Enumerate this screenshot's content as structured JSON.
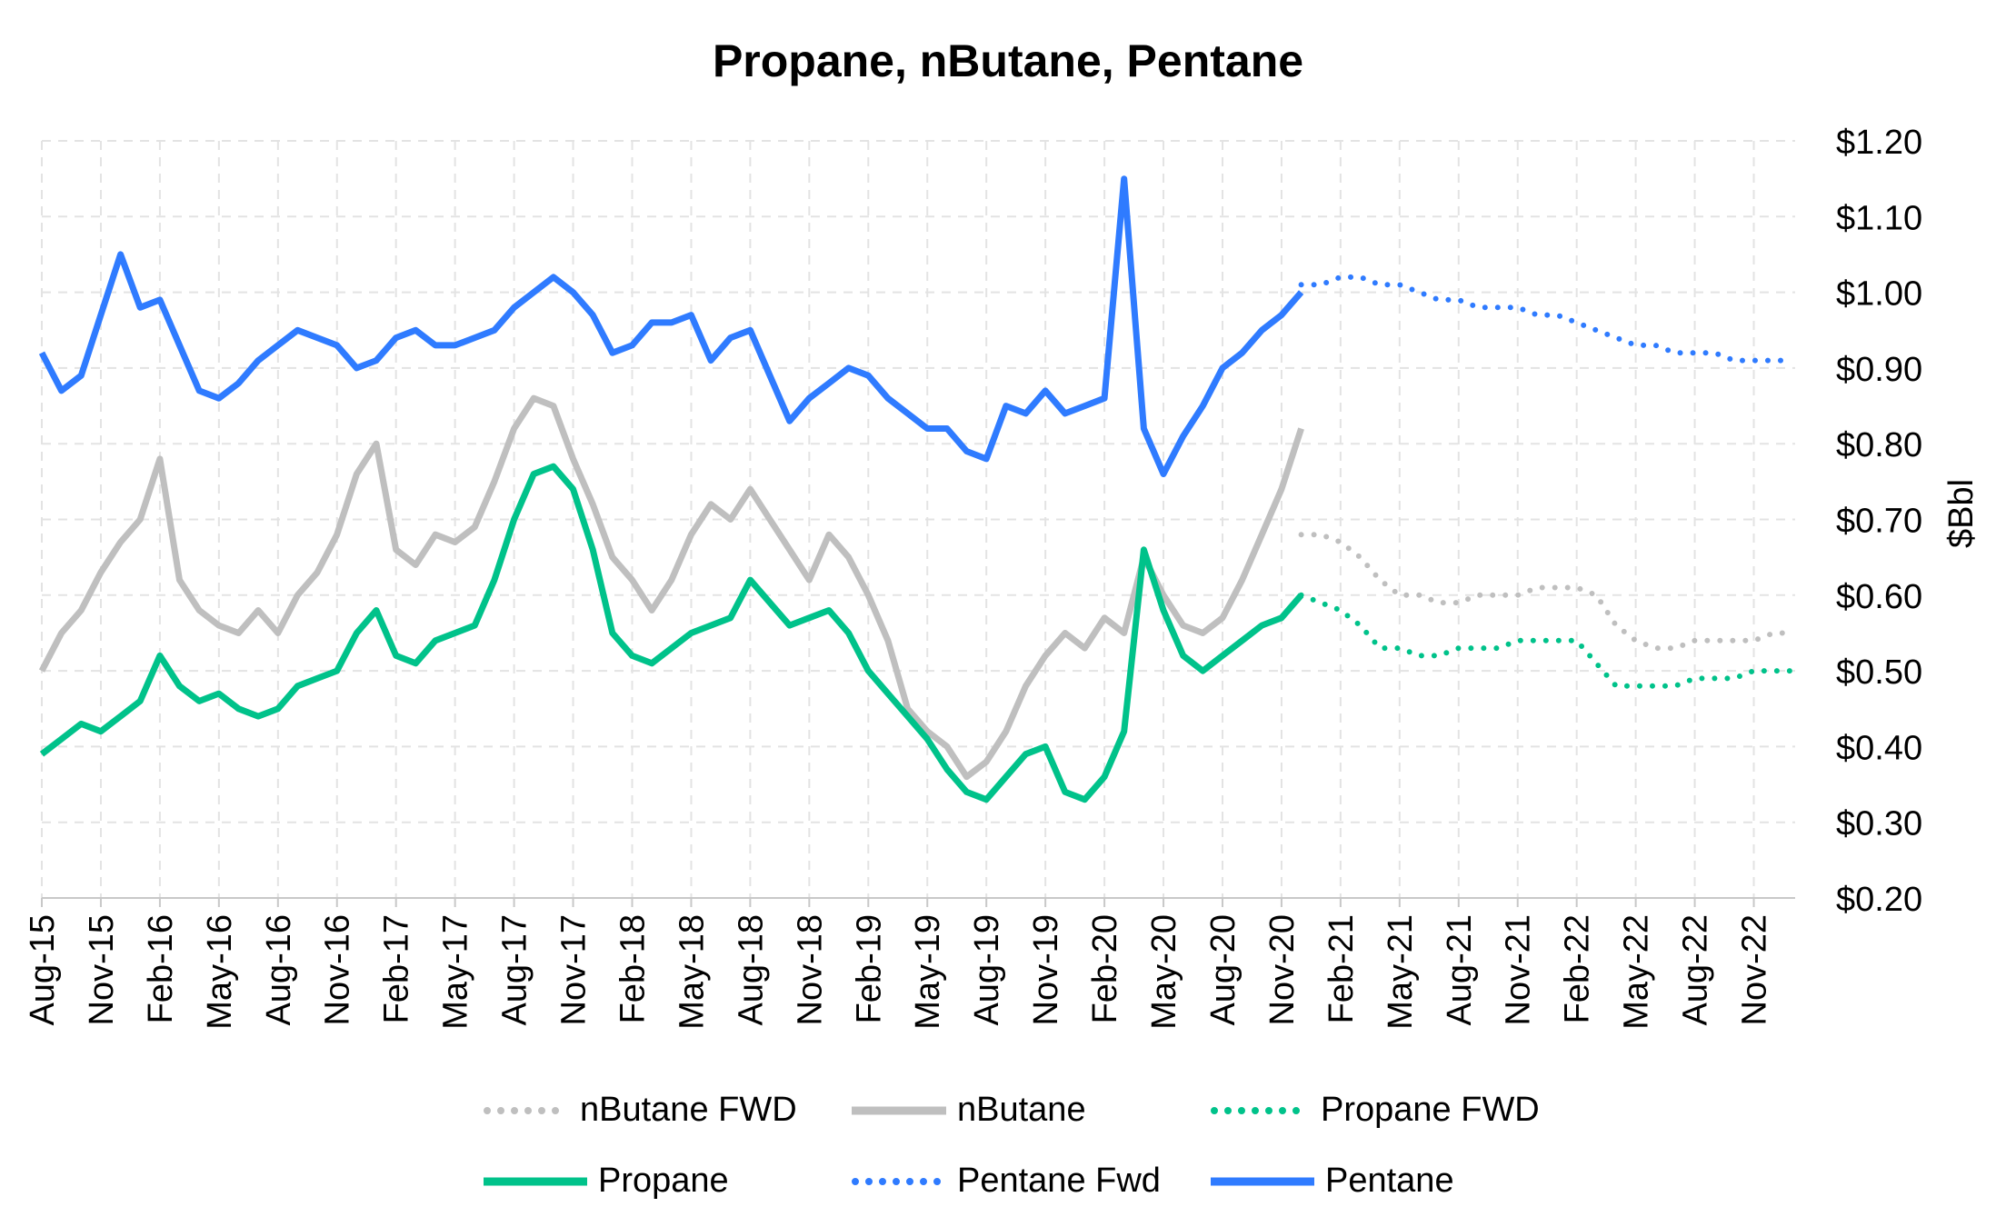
{
  "chart_data": {
    "type": "line",
    "title": "Propane, nButane, Pentane",
    "xlabel": "",
    "ylabel": "$Bbl",
    "ylim": [
      0.2,
      1.2
    ],
    "y_ticks": [
      "$0.20",
      "$0.30",
      "$0.40",
      "$0.50",
      "$0.60",
      "$0.70",
      "$0.80",
      "$0.90",
      "$1.00",
      "$1.10",
      "$1.20"
    ],
    "x_ticks": [
      "Aug-15",
      "Nov-15",
      "Feb-16",
      "May-16",
      "Aug-16",
      "Nov-16",
      "Feb-17",
      "May-17",
      "Aug-17",
      "Nov-17",
      "Feb-18",
      "May-18",
      "Aug-18",
      "Nov-18",
      "Feb-19",
      "May-19",
      "Aug-19",
      "Nov-19",
      "Feb-20",
      "May-20",
      "Aug-20",
      "Nov-20",
      "Feb-21",
      "May-21",
      "Aug-21",
      "Nov-21",
      "Feb-22",
      "May-22",
      "Aug-22",
      "Nov-22"
    ],
    "grid": true,
    "legend_position": "bottom",
    "series": [
      {
        "name": "Pentane",
        "style": "solid",
        "color": "#2f7bff",
        "x": [
          "Aug-15",
          "Sep-15",
          "Oct-15",
          "Nov-15",
          "Dec-15",
          "Jan-16",
          "Feb-16",
          "Mar-16",
          "Apr-16",
          "May-16",
          "Jun-16",
          "Jul-16",
          "Aug-16",
          "Sep-16",
          "Oct-16",
          "Nov-16",
          "Dec-16",
          "Jan-17",
          "Feb-17",
          "Mar-17",
          "Apr-17",
          "May-17",
          "Jun-17",
          "Jul-17",
          "Aug-17",
          "Sep-17",
          "Oct-17",
          "Nov-17",
          "Dec-17",
          "Jan-18",
          "Feb-18",
          "Mar-18",
          "Apr-18",
          "May-18",
          "Jun-18",
          "Jul-18",
          "Aug-18",
          "Sep-18",
          "Oct-18",
          "Nov-18",
          "Dec-18",
          "Jan-19",
          "Feb-19",
          "Mar-19",
          "Apr-19",
          "May-19",
          "Jun-19",
          "Jul-19",
          "Aug-19",
          "Sep-19",
          "Oct-19",
          "Nov-19",
          "Dec-19",
          "Jan-20",
          "Feb-20",
          "Mar-20",
          "Apr-20",
          "May-20",
          "Jun-20",
          "Jul-20",
          "Aug-20",
          "Sep-20",
          "Oct-20",
          "Nov-20",
          "Dec-20"
        ],
        "values": [
          0.92,
          0.87,
          0.89,
          0.97,
          1.05,
          0.98,
          0.99,
          0.93,
          0.87,
          0.86,
          0.88,
          0.91,
          0.93,
          0.95,
          0.94,
          0.93,
          0.9,
          0.91,
          0.94,
          0.95,
          0.93,
          0.93,
          0.94,
          0.95,
          0.98,
          1.0,
          1.02,
          1.0,
          0.97,
          0.92,
          0.93,
          0.96,
          0.96,
          0.97,
          0.91,
          0.94,
          0.95,
          0.89,
          0.83,
          0.86,
          0.88,
          0.9,
          0.89,
          0.86,
          0.84,
          0.82,
          0.82,
          0.79,
          0.78,
          0.85,
          0.84,
          0.87,
          0.84,
          0.85,
          0.86,
          1.15,
          0.82,
          0.76,
          0.81,
          0.85,
          0.9,
          0.92,
          0.95,
          0.97,
          1.0
        ]
      },
      {
        "name": "Pentane Fwd",
        "style": "dotted",
        "color": "#2f7bff",
        "x": [
          "Dec-20",
          "Jan-21",
          "Feb-21",
          "Mar-21",
          "Apr-21",
          "May-21",
          "Jun-21",
          "Jul-21",
          "Aug-21",
          "Sep-21",
          "Oct-21",
          "Nov-21",
          "Dec-21",
          "Jan-22",
          "Feb-22",
          "Mar-22",
          "Apr-22",
          "May-22",
          "Jun-22",
          "Jul-22",
          "Aug-22",
          "Sep-22",
          "Oct-22",
          "Nov-22",
          "Dec-22",
          "Jan-23"
        ],
        "values": [
          1.01,
          1.01,
          1.02,
          1.02,
          1.01,
          1.01,
          1.0,
          0.99,
          0.99,
          0.98,
          0.98,
          0.98,
          0.97,
          0.97,
          0.96,
          0.95,
          0.94,
          0.93,
          0.93,
          0.92,
          0.92,
          0.92,
          0.91,
          0.91,
          0.91,
          0.91
        ]
      },
      {
        "name": "nButane",
        "style": "solid",
        "color": "#bfbfbf",
        "x": [
          "Aug-15",
          "Sep-15",
          "Oct-15",
          "Nov-15",
          "Dec-15",
          "Jan-16",
          "Feb-16",
          "Mar-16",
          "Apr-16",
          "May-16",
          "Jun-16",
          "Jul-16",
          "Aug-16",
          "Sep-16",
          "Oct-16",
          "Nov-16",
          "Dec-16",
          "Jan-17",
          "Feb-17",
          "Mar-17",
          "Apr-17",
          "May-17",
          "Jun-17",
          "Jul-17",
          "Aug-17",
          "Sep-17",
          "Oct-17",
          "Nov-17",
          "Dec-17",
          "Jan-18",
          "Feb-18",
          "Mar-18",
          "Apr-18",
          "May-18",
          "Jun-18",
          "Jul-18",
          "Aug-18",
          "Sep-18",
          "Oct-18",
          "Nov-18",
          "Dec-18",
          "Jan-19",
          "Feb-19",
          "Mar-19",
          "Apr-19",
          "May-19",
          "Jun-19",
          "Jul-19",
          "Aug-19",
          "Sep-19",
          "Oct-19",
          "Nov-19",
          "Dec-19",
          "Jan-20",
          "Feb-20",
          "Mar-20",
          "Apr-20",
          "May-20",
          "Jun-20",
          "Jul-20",
          "Aug-20",
          "Sep-20",
          "Oct-20",
          "Nov-20",
          "Dec-20"
        ],
        "values": [
          0.5,
          0.55,
          0.58,
          0.63,
          0.67,
          0.7,
          0.78,
          0.62,
          0.58,
          0.56,
          0.55,
          0.58,
          0.55,
          0.6,
          0.63,
          0.68,
          0.76,
          0.8,
          0.66,
          0.64,
          0.68,
          0.67,
          0.69,
          0.75,
          0.82,
          0.86,
          0.85,
          0.78,
          0.72,
          0.65,
          0.62,
          0.58,
          0.62,
          0.68,
          0.72,
          0.7,
          0.74,
          0.7,
          0.66,
          0.62,
          0.68,
          0.65,
          0.6,
          0.54,
          0.45,
          0.42,
          0.4,
          0.36,
          0.38,
          0.42,
          0.48,
          0.52,
          0.55,
          0.53,
          0.57,
          0.55,
          0.65,
          0.6,
          0.56,
          0.55,
          0.57,
          0.62,
          0.68,
          0.74,
          0.82
        ]
      },
      {
        "name": "nButane FWD",
        "style": "dotted",
        "color": "#bfbfbf",
        "x": [
          "Dec-20",
          "Jan-21",
          "Feb-21",
          "Mar-21",
          "Apr-21",
          "May-21",
          "Jun-21",
          "Jul-21",
          "Aug-21",
          "Sep-21",
          "Oct-21",
          "Nov-21",
          "Dec-21",
          "Jan-22",
          "Feb-22",
          "Mar-22",
          "Apr-22",
          "May-22",
          "Jun-22",
          "Jul-22",
          "Aug-22",
          "Sep-22",
          "Oct-22",
          "Nov-22",
          "Dec-22",
          "Jan-23"
        ],
        "values": [
          0.68,
          0.68,
          0.67,
          0.65,
          0.62,
          0.6,
          0.6,
          0.59,
          0.59,
          0.6,
          0.6,
          0.6,
          0.61,
          0.61,
          0.61,
          0.6,
          0.56,
          0.54,
          0.53,
          0.53,
          0.54,
          0.54,
          0.54,
          0.54,
          0.55,
          0.55
        ]
      },
      {
        "name": "Propane",
        "style": "solid",
        "color": "#00c28a",
        "x": [
          "Aug-15",
          "Sep-15",
          "Oct-15",
          "Nov-15",
          "Dec-15",
          "Jan-16",
          "Feb-16",
          "Mar-16",
          "Apr-16",
          "May-16",
          "Jun-16",
          "Jul-16",
          "Aug-16",
          "Sep-16",
          "Oct-16",
          "Nov-16",
          "Dec-16",
          "Jan-17",
          "Feb-17",
          "Mar-17",
          "Apr-17",
          "May-17",
          "Jun-17",
          "Jul-17",
          "Aug-17",
          "Sep-17",
          "Oct-17",
          "Nov-17",
          "Dec-17",
          "Jan-18",
          "Feb-18",
          "Mar-18",
          "Apr-18",
          "May-18",
          "Jun-18",
          "Jul-18",
          "Aug-18",
          "Sep-18",
          "Oct-18",
          "Nov-18",
          "Dec-18",
          "Jan-19",
          "Feb-19",
          "Mar-19",
          "Apr-19",
          "May-19",
          "Jun-19",
          "Jul-19",
          "Aug-19",
          "Sep-19",
          "Oct-19",
          "Nov-19",
          "Dec-19",
          "Jan-20",
          "Feb-20",
          "Mar-20",
          "Apr-20",
          "May-20",
          "Jun-20",
          "Jul-20",
          "Aug-20",
          "Sep-20",
          "Oct-20",
          "Nov-20",
          "Dec-20"
        ],
        "values": [
          0.39,
          0.41,
          0.43,
          0.42,
          0.44,
          0.46,
          0.52,
          0.48,
          0.46,
          0.47,
          0.45,
          0.44,
          0.45,
          0.48,
          0.49,
          0.5,
          0.55,
          0.58,
          0.52,
          0.51,
          0.54,
          0.55,
          0.56,
          0.62,
          0.7,
          0.76,
          0.77,
          0.74,
          0.66,
          0.55,
          0.52,
          0.51,
          0.53,
          0.55,
          0.56,
          0.57,
          0.62,
          0.59,
          0.56,
          0.57,
          0.58,
          0.55,
          0.5,
          0.47,
          0.44,
          0.41,
          0.37,
          0.34,
          0.33,
          0.36,
          0.39,
          0.4,
          0.34,
          0.33,
          0.36,
          0.42,
          0.66,
          0.58,
          0.52,
          0.5,
          0.52,
          0.54,
          0.56,
          0.57,
          0.6
        ]
      },
      {
        "name": "Propane FWD",
        "style": "dotted",
        "color": "#00c28a",
        "x": [
          "Dec-20",
          "Jan-21",
          "Feb-21",
          "Mar-21",
          "Apr-21",
          "May-21",
          "Jun-21",
          "Jul-21",
          "Aug-21",
          "Sep-21",
          "Oct-21",
          "Nov-21",
          "Dec-21",
          "Jan-22",
          "Feb-22",
          "Mar-22",
          "Apr-22",
          "May-22",
          "Jun-22",
          "Jul-22",
          "Aug-22",
          "Sep-22",
          "Oct-22",
          "Nov-22",
          "Dec-22",
          "Jan-23"
        ],
        "values": [
          0.6,
          0.59,
          0.58,
          0.56,
          0.53,
          0.53,
          0.52,
          0.52,
          0.53,
          0.53,
          0.53,
          0.54,
          0.54,
          0.54,
          0.54,
          0.51,
          0.48,
          0.48,
          0.48,
          0.48,
          0.49,
          0.49,
          0.49,
          0.5,
          0.5,
          0.5
        ]
      }
    ]
  },
  "legend": {
    "row1": [
      {
        "label": "nButane FWD",
        "series": "nButane FWD"
      },
      {
        "label": "nButane",
        "series": "nButane"
      },
      {
        "label": "Propane FWD",
        "series": "Propane FWD"
      }
    ],
    "row2": [
      {
        "label": "Propane",
        "series": "Propane"
      },
      {
        "label": "Pentane Fwd",
        "series": "Pentane Fwd"
      },
      {
        "label": "Pentane",
        "series": "Pentane"
      }
    ]
  }
}
